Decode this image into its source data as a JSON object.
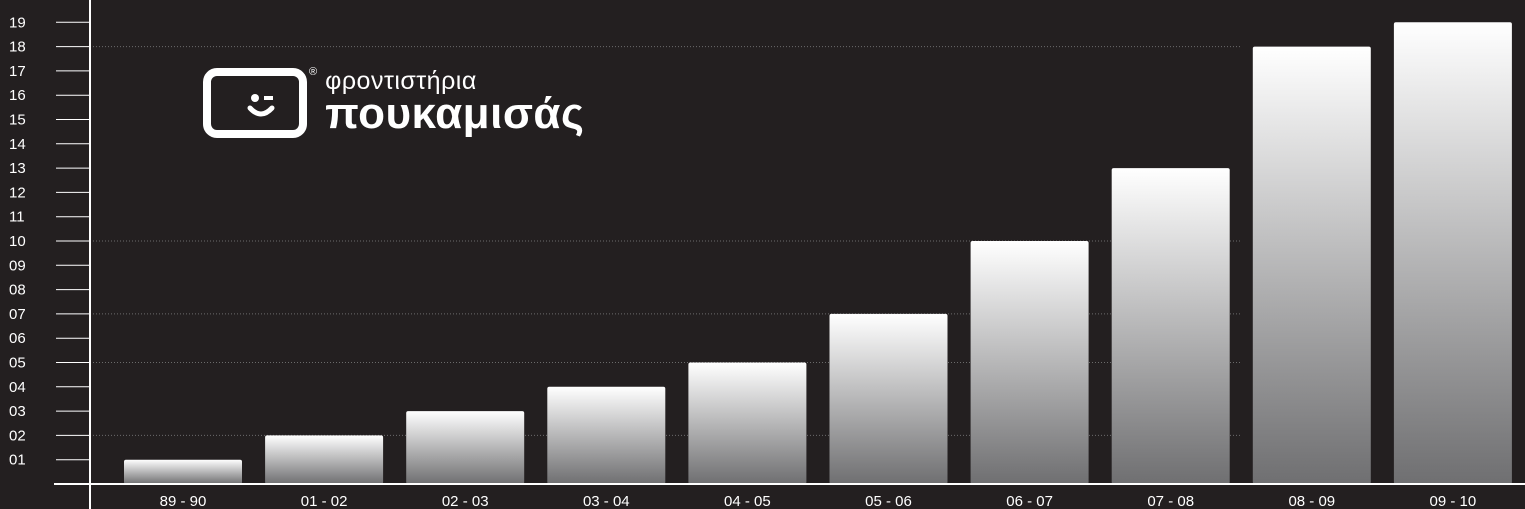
{
  "brand": {
    "line1": "φροντιστήρια",
    "line2": "πουκαμισάς",
    "registered": "®"
  },
  "colors": {
    "background": "#231f20",
    "axis": "#ffffff",
    "bar_top": "#ffffff",
    "bar_bottom": "#6f6f71",
    "gridline": "#6b6b6b"
  },
  "chart_data": {
    "type": "bar",
    "categories": [
      "89 - 90",
      "01 - 02",
      "02 - 03",
      "03 - 04",
      "04 - 05",
      "05 - 06",
      "06 - 07",
      "07 - 08",
      "08 - 09",
      "09 - 10"
    ],
    "values": [
      1,
      2,
      3,
      4,
      5,
      7,
      10,
      13,
      18,
      19
    ],
    "ylim": [
      0,
      19
    ],
    "y_tick_labels": [
      "01",
      "02",
      "03",
      "04",
      "05",
      "06",
      "07",
      "08",
      "09",
      "10",
      "11",
      "12",
      "13",
      "14",
      "15",
      "16",
      "17",
      "18",
      "19"
    ],
    "gridline_values": [
      2,
      5,
      7,
      10,
      18
    ],
    "title": "",
    "xlabel": "",
    "ylabel": "",
    "legend": "none",
    "bar_fill": "vertical gradient white to gray"
  }
}
